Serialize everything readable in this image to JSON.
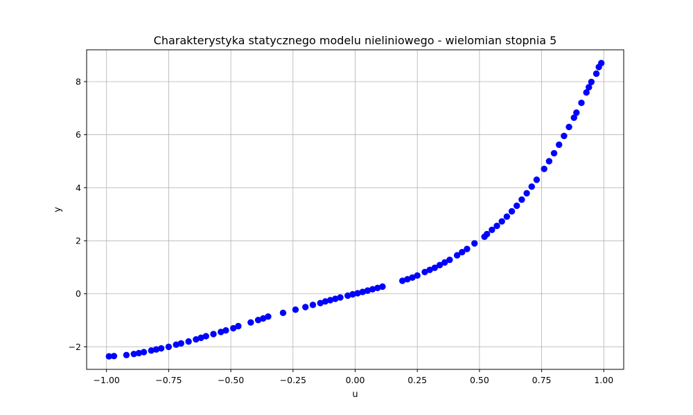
{
  "chart_data": {
    "type": "scatter",
    "title": "Charakterystyka statycznego modelu nieliniowego - wielomian stopnia 5",
    "xlabel": "u",
    "ylabel": "y",
    "xlim": [
      -1.08,
      1.08
    ],
    "ylim": [
      -2.85,
      9.2
    ],
    "grid": true,
    "marker_color": "#0000ff",
    "x_ticks": [
      -1.0,
      -0.75,
      -0.5,
      -0.25,
      0.0,
      0.25,
      0.5,
      0.75,
      1.0
    ],
    "x_tick_labels": [
      "−1.00",
      "−0.75",
      "−0.50",
      "−0.25",
      "0.00",
      "0.25",
      "0.50",
      "0.75",
      "1.00"
    ],
    "y_ticks": [
      -2,
      0,
      2,
      4,
      6,
      8
    ],
    "y_tick_labels": [
      "−2",
      "0",
      "2",
      "4",
      "6",
      "8"
    ],
    "x": [
      -0.99,
      -0.97,
      -0.92,
      -0.89,
      -0.87,
      -0.85,
      -0.82,
      -0.8,
      -0.78,
      -0.75,
      -0.72,
      -0.7,
      -0.67,
      -0.64,
      -0.62,
      -0.6,
      -0.57,
      -0.54,
      -0.52,
      -0.49,
      -0.47,
      -0.42,
      -0.39,
      -0.37,
      -0.35,
      -0.29,
      -0.24,
      -0.2,
      -0.17,
      -0.14,
      -0.12,
      -0.1,
      -0.08,
      -0.06,
      -0.03,
      -0.01,
      0.01,
      0.03,
      0.05,
      0.07,
      0.09,
      0.11,
      0.19,
      0.21,
      0.23,
      0.25,
      0.28,
      0.3,
      0.32,
      0.34,
      0.36,
      0.38,
      0.41,
      0.43,
      0.45,
      0.48,
      0.52,
      0.53,
      0.55,
      0.57,
      0.59,
      0.61,
      0.63,
      0.65,
      0.67,
      0.69,
      0.71,
      0.73,
      0.76,
      0.78,
      0.8,
      0.82,
      0.84,
      0.86,
      0.88,
      0.89,
      0.91,
      0.93,
      0.94,
      0.95,
      0.97,
      0.98,
      0.99
    ],
    "y": [
      -2.36,
      -2.35,
      -2.31,
      -2.27,
      -2.24,
      -2.2,
      -2.14,
      -2.1,
      -2.06,
      -2.0,
      -1.92,
      -1.87,
      -1.8,
      -1.72,
      -1.66,
      -1.6,
      -1.52,
      -1.44,
      -1.38,
      -1.3,
      -1.22,
      -1.08,
      -0.99,
      -0.93,
      -0.86,
      -0.72,
      -0.6,
      -0.5,
      -0.42,
      -0.35,
      -0.29,
      -0.24,
      -0.19,
      -0.14,
      -0.07,
      -0.02,
      0.02,
      0.07,
      0.12,
      0.17,
      0.22,
      0.27,
      0.49,
      0.55,
      0.61,
      0.69,
      0.82,
      0.9,
      0.98,
      1.08,
      1.18,
      1.28,
      1.45,
      1.57,
      1.69,
      1.9,
      2.15,
      2.25,
      2.41,
      2.56,
      2.73,
      2.91,
      3.11,
      3.32,
      3.55,
      3.79,
      4.04,
      4.3,
      4.71,
      5.0,
      5.3,
      5.62,
      5.95,
      6.29,
      6.64,
      6.83,
      7.2,
      7.59,
      7.79,
      7.99,
      8.3,
      8.55,
      8.7
    ]
  }
}
